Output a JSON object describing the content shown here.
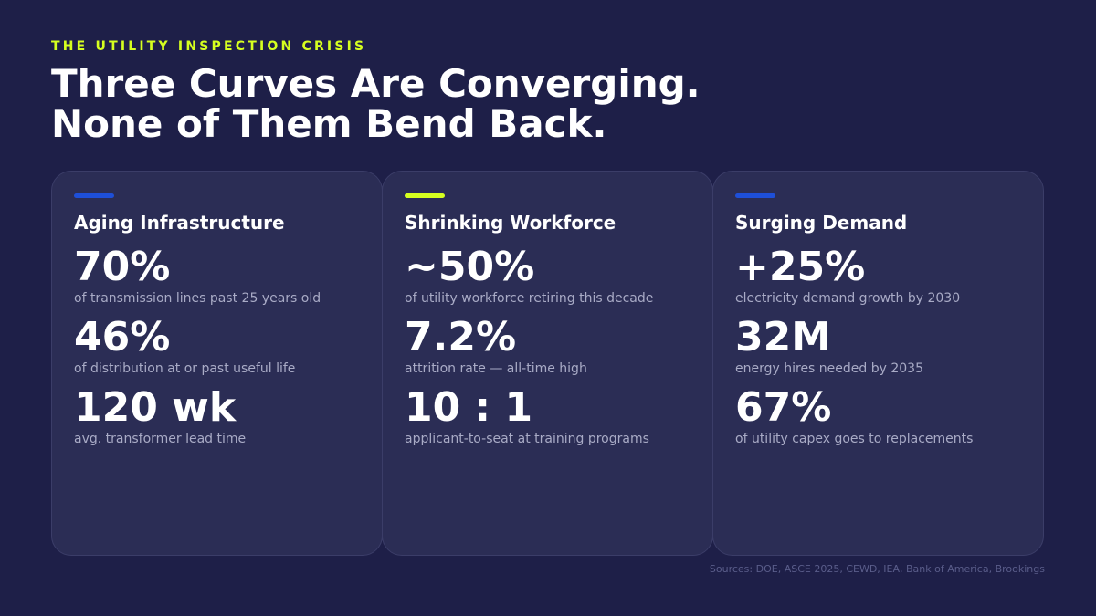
{
  "header": {
    "eyebrow": "THE UTILITY INSPECTION CRISIS",
    "title_line1": "Three Curves Are Converging.",
    "title_line2": "None of Them Bend Back."
  },
  "cards": [
    {
      "title": "Aging Infrastructure",
      "accent": "#1e4fd8",
      "stats": [
        {
          "value": "70%",
          "desc": "of transmission lines past 25 years old"
        },
        {
          "value": "46%",
          "desc": "of distribution at or past useful life"
        },
        {
          "value": "120 wk",
          "desc": "avg. transformer lead time"
        }
      ]
    },
    {
      "title": "Shrinking Workforce",
      "accent": "#d6ff1f",
      "stats": [
        {
          "value": "~50%",
          "desc": "of utility workforce retiring this decade"
        },
        {
          "value": "7.2%",
          "desc": "attrition rate — all-time high"
        },
        {
          "value": "10 : 1",
          "desc": "applicant-to-seat at training programs"
        }
      ]
    },
    {
      "title": "Surging Demand",
      "accent": "#1e4fd8",
      "stats": [
        {
          "value": "+25%",
          "desc": "electricity demand growth by 2030"
        },
        {
          "value": "32M",
          "desc": "energy hires needed by 2035"
        },
        {
          "value": "67%",
          "desc": "of utility capex goes to replacements"
        }
      ]
    }
  ],
  "footer": {
    "sources": "Sources: DOE, ASCE 2025, CEWD, IEA, Bank of America, Brookings"
  }
}
